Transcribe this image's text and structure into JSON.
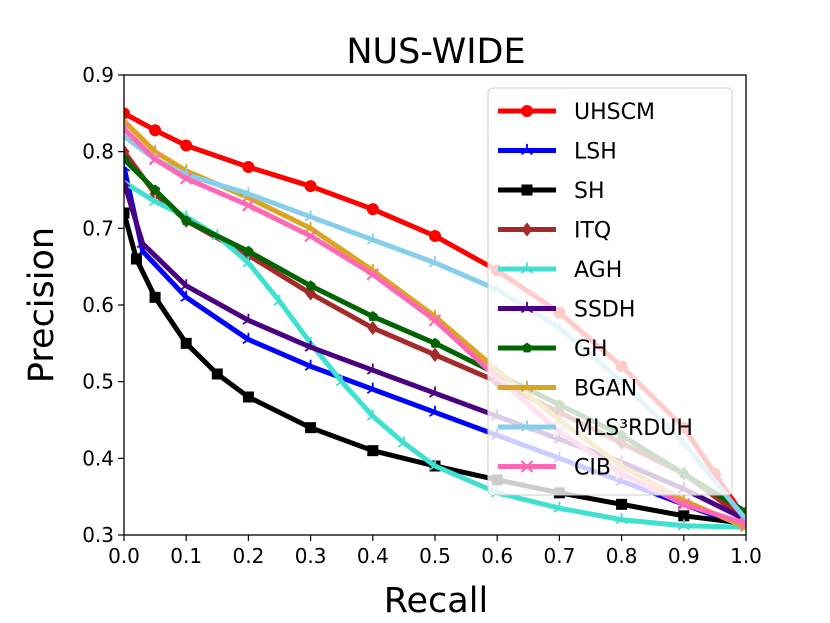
{
  "chart_data": {
    "type": "line",
    "title": "NUS-WIDE",
    "xlabel": "Recall",
    "ylabel": "Precision",
    "xlim": [
      0.0,
      1.0
    ],
    "ylim": [
      0.3,
      0.9
    ],
    "xticks": [
      "0.0",
      "0.1",
      "0.2",
      "0.3",
      "0.4",
      "0.5",
      "0.6",
      "0.7",
      "0.8",
      "0.9",
      "1.0"
    ],
    "yticks": [
      "0.3",
      "0.4",
      "0.5",
      "0.6",
      "0.7",
      "0.8",
      "0.9"
    ],
    "xtick_values": [
      0.0,
      0.1,
      0.2,
      0.3,
      0.4,
      0.5,
      0.6,
      0.7,
      0.8,
      0.9,
      1.0
    ],
    "ytick_values": [
      0.3,
      0.4,
      0.5,
      0.6,
      0.7,
      0.8,
      0.9
    ],
    "grid": false,
    "legend_position": "top-right",
    "series": [
      {
        "name": "UHSCM",
        "color": "#ff0000",
        "marker": "circle",
        "x": [
          0.0,
          0.05,
          0.1,
          0.2,
          0.3,
          0.4,
          0.5,
          0.6,
          0.7,
          0.8,
          0.9,
          0.95,
          1.0
        ],
        "y": [
          0.85,
          0.828,
          0.808,
          0.78,
          0.755,
          0.725,
          0.69,
          0.645,
          0.59,
          0.52,
          0.44,
          0.38,
          0.32
        ]
      },
      {
        "name": "LSH",
        "color": "#0000ff",
        "marker": "tri",
        "x": [
          0.0,
          0.03,
          0.1,
          0.2,
          0.3,
          0.4,
          0.5,
          0.6,
          0.7,
          0.8,
          0.9,
          1.0
        ],
        "y": [
          0.78,
          0.67,
          0.61,
          0.555,
          0.52,
          0.49,
          0.46,
          0.43,
          0.4,
          0.37,
          0.34,
          0.31
        ]
      },
      {
        "name": "SH",
        "color": "#000000",
        "marker": "square",
        "x": [
          0.0,
          0.02,
          0.05,
          0.1,
          0.15,
          0.2,
          0.3,
          0.4,
          0.5,
          0.6,
          0.7,
          0.8,
          0.9,
          1.0
        ],
        "y": [
          0.72,
          0.66,
          0.61,
          0.55,
          0.51,
          0.48,
          0.44,
          0.41,
          0.39,
          0.372,
          0.355,
          0.34,
          0.325,
          0.315
        ]
      },
      {
        "name": "ITQ",
        "color": "#a52a2a",
        "marker": "diamond",
        "x": [
          0.0,
          0.05,
          0.1,
          0.2,
          0.3,
          0.4,
          0.5,
          0.6,
          0.7,
          0.8,
          0.9,
          1.0
        ],
        "y": [
          0.8,
          0.745,
          0.71,
          0.665,
          0.615,
          0.57,
          0.535,
          0.5,
          0.46,
          0.42,
          0.38,
          0.32
        ]
      },
      {
        "name": "AGH",
        "color": "#40e0d0",
        "marker": "tri",
        "x": [
          0.0,
          0.05,
          0.1,
          0.15,
          0.2,
          0.25,
          0.3,
          0.35,
          0.4,
          0.45,
          0.5,
          0.6,
          0.7,
          0.8,
          0.9,
          1.0
        ],
        "y": [
          0.76,
          0.735,
          0.715,
          0.69,
          0.655,
          0.605,
          0.55,
          0.5,
          0.455,
          0.42,
          0.39,
          0.355,
          0.335,
          0.32,
          0.312,
          0.31
        ]
      },
      {
        "name": "SSDH",
        "color": "#4b0082",
        "marker": "tri",
        "x": [
          0.0,
          0.03,
          0.1,
          0.2,
          0.3,
          0.4,
          0.5,
          0.6,
          0.7,
          0.8,
          0.9,
          1.0
        ],
        "y": [
          0.76,
          0.68,
          0.625,
          0.58,
          0.545,
          0.515,
          0.485,
          0.455,
          0.425,
          0.395,
          0.36,
          0.32
        ]
      },
      {
        "name": "GH",
        "color": "#006400",
        "marker": "pentagon",
        "x": [
          0.0,
          0.05,
          0.1,
          0.2,
          0.3,
          0.4,
          0.5,
          0.6,
          0.7,
          0.8,
          0.9,
          1.0
        ],
        "y": [
          0.79,
          0.75,
          0.71,
          0.67,
          0.625,
          0.585,
          0.55,
          0.51,
          0.47,
          0.43,
          0.38,
          0.33
        ]
      },
      {
        "name": "BGAN",
        "color": "#daa520",
        "marker": "tri",
        "x": [
          0.0,
          0.05,
          0.1,
          0.2,
          0.3,
          0.4,
          0.5,
          0.6,
          0.7,
          0.8,
          0.9,
          1.0
        ],
        "y": [
          0.84,
          0.8,
          0.775,
          0.74,
          0.7,
          0.645,
          0.585,
          0.515,
          0.45,
          0.39,
          0.345,
          0.31
        ]
      },
      {
        "name": "MLS³RDUH",
        "color": "#87ceeb",
        "marker": "tri",
        "x": [
          0.0,
          0.05,
          0.1,
          0.2,
          0.3,
          0.4,
          0.5,
          0.6,
          0.7,
          0.8,
          0.9,
          1.0
        ],
        "y": [
          0.82,
          0.79,
          0.77,
          0.745,
          0.715,
          0.685,
          0.655,
          0.62,
          0.57,
          0.5,
          0.42,
          0.32
        ]
      },
      {
        "name": "CIB",
        "color": "#ff69b4",
        "marker": "x",
        "x": [
          0.0,
          0.05,
          0.1,
          0.2,
          0.3,
          0.4,
          0.5,
          0.6,
          0.7,
          0.8,
          0.9,
          1.0
        ],
        "y": [
          0.83,
          0.79,
          0.765,
          0.73,
          0.69,
          0.64,
          0.58,
          0.505,
          0.435,
          0.38,
          0.34,
          0.315
        ]
      }
    ]
  }
}
